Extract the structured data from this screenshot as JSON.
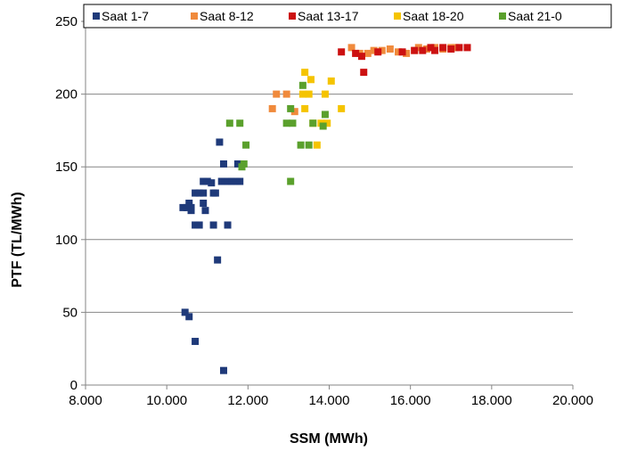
{
  "chart_data": {
    "type": "scatter",
    "title": "",
    "xlabel": "SSM (MWh)",
    "ylabel": "PTF (TL/MWh)",
    "xlim": [
      8000,
      20000
    ],
    "ylim": [
      0,
      250
    ],
    "x_ticks": [
      8000,
      10000,
      12000,
      14000,
      16000,
      18000,
      20000
    ],
    "x_tick_labels": [
      "8.000",
      "10.000",
      "12.000",
      "14.000",
      "16.000",
      "18.000",
      "20.000"
    ],
    "y_ticks": [
      0,
      50,
      100,
      150,
      200,
      250
    ],
    "y_tick_labels": [
      "0",
      "50",
      "100",
      "150",
      "200",
      "250"
    ],
    "grid": "horizontal",
    "legend_position": "top",
    "series": [
      {
        "name": "Saat 1-7",
        "color": "#1f3a7a",
        "points": [
          [
            10400,
            122
          ],
          [
            10500,
            122
          ],
          [
            10600,
            120
          ],
          [
            10550,
            125
          ],
          [
            10600,
            122
          ],
          [
            10700,
            132
          ],
          [
            10800,
            132
          ],
          [
            10900,
            132
          ],
          [
            10900,
            125
          ],
          [
            10700,
            110
          ],
          [
            10800,
            110
          ],
          [
            10950,
            120
          ],
          [
            10900,
            140
          ],
          [
            11000,
            140
          ],
          [
            11100,
            139
          ],
          [
            11150,
            132
          ],
          [
            11200,
            132
          ],
          [
            11150,
            110
          ],
          [
            11300,
            167
          ],
          [
            11350,
            140
          ],
          [
            11400,
            152
          ],
          [
            11500,
            140
          ],
          [
            11600,
            140
          ],
          [
            11700,
            140
          ],
          [
            11800,
            140
          ],
          [
            11750,
            152
          ],
          [
            11500,
            110
          ],
          [
            11250,
            86
          ],
          [
            10450,
            50
          ],
          [
            10550,
            47
          ],
          [
            10700,
            30
          ],
          [
            11400,
            10
          ]
        ]
      },
      {
        "name": "Saat 8-12",
        "color": "#f08a3c",
        "points": [
          [
            12600,
            190
          ],
          [
            12700,
            200
          ],
          [
            12950,
            200
          ],
          [
            13150,
            188
          ],
          [
            14550,
            232
          ],
          [
            14750,
            228
          ],
          [
            14950,
            228
          ],
          [
            15100,
            230
          ],
          [
            15300,
            230
          ],
          [
            15500,
            231
          ],
          [
            15700,
            229
          ],
          [
            15900,
            228
          ],
          [
            16100,
            230
          ],
          [
            16200,
            232
          ],
          [
            16400,
            231
          ],
          [
            16600,
            232
          ],
          [
            16800,
            231
          ],
          [
            17000,
            232
          ],
          [
            17100,
            232
          ]
        ]
      },
      {
        "name": "Saat 13-17",
        "color": "#cc1111",
        "points": [
          [
            14300,
            229
          ],
          [
            14650,
            228
          ],
          [
            14800,
            226
          ],
          [
            14850,
            215
          ],
          [
            15200,
            229
          ],
          [
            15800,
            229
          ],
          [
            16100,
            230
          ],
          [
            16300,
            230
          ],
          [
            16500,
            232
          ],
          [
            16600,
            230
          ],
          [
            16800,
            232
          ],
          [
            17000,
            231
          ],
          [
            17200,
            232
          ],
          [
            17400,
            232
          ]
        ]
      },
      {
        "name": "Saat 18-20",
        "color": "#f5c400",
        "points": [
          [
            13400,
            215
          ],
          [
            13550,
            210
          ],
          [
            13350,
            200
          ],
          [
            13500,
            200
          ],
          [
            13400,
            190
          ],
          [
            13600,
            180
          ],
          [
            13800,
            180
          ],
          [
            13950,
            180
          ],
          [
            13900,
            200
          ],
          [
            14050,
            209
          ],
          [
            14300,
            190
          ],
          [
            13700,
            165
          ]
        ]
      },
      {
        "name": "Saat 21-0",
        "color": "#5aa02c",
        "points": [
          [
            11550,
            180
          ],
          [
            11800,
            180
          ],
          [
            11950,
            165
          ],
          [
            11900,
            152
          ],
          [
            11850,
            150
          ],
          [
            12950,
            180
          ],
          [
            13100,
            180
          ],
          [
            13050,
            190
          ],
          [
            13350,
            206
          ],
          [
            13300,
            165
          ],
          [
            13500,
            165
          ],
          [
            13600,
            180
          ],
          [
            13850,
            178
          ],
          [
            13900,
            186
          ],
          [
            13050,
            140
          ]
        ]
      }
    ]
  }
}
